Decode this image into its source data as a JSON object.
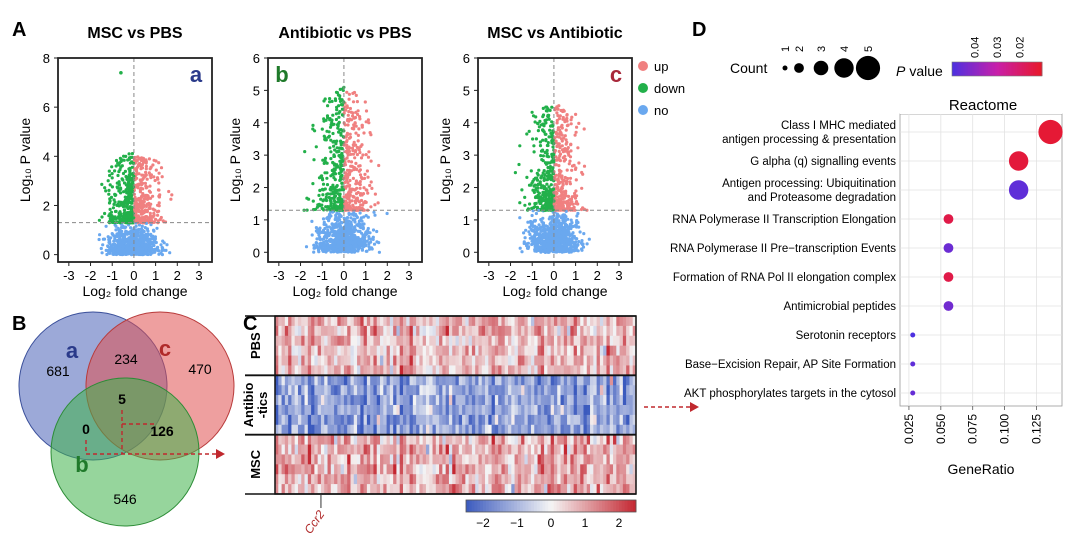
{
  "panel_letters": {
    "A": "A",
    "B": "B",
    "C": "C",
    "D": "D"
  },
  "colors": {
    "up": "#f08080",
    "down": "#22b04a",
    "no": "#6aa8ef",
    "venn_a": "#4a62b8",
    "venn_b": "#3fb24a",
    "venn_c": "#e05050",
    "arrow": "#c0282e"
  },
  "chart_data": [
    {
      "type": "scatter",
      "id": "volcano-a",
      "title": "MSC vs PBS",
      "corner_label": "a",
      "xlabel": "Log₂ fold change",
      "ylabel": "Log₁₀ P value",
      "xlim": [
        -3.5,
        3.6
      ],
      "ylim": [
        -0.3,
        8.0
      ],
      "xticks": [
        "-3",
        "-2",
        "-1",
        "0",
        "1",
        "2",
        "3"
      ],
      "xtick_values": [
        -3,
        -2,
        -1,
        0,
        1,
        2,
        3
      ],
      "yticks": [
        "0",
        "2",
        "4",
        "6",
        "8"
      ],
      "ytick_values": [
        0,
        2,
        4,
        6,
        8
      ],
      "threshold_p": 1.3,
      "threshold_fc": 0,
      "max_abs_fc": 1.9,
      "max_p": 4.2,
      "outlier": [
        -0.6,
        7.4
      ]
    },
    {
      "type": "scatter",
      "id": "volcano-b",
      "title": "Antibiotic vs PBS",
      "corner_label": "b",
      "xlabel": "Log₂ fold change",
      "ylabel": "Log₁₀ P value",
      "xlim": [
        -3.5,
        3.6
      ],
      "ylim": [
        -0.3,
        6.0
      ],
      "xticks": [
        "-3",
        "-2",
        "-1",
        "0",
        "1",
        "2",
        "3"
      ],
      "xtick_values": [
        -3,
        -2,
        -1,
        0,
        1,
        2,
        3
      ],
      "yticks": [
        "0",
        "1",
        "2",
        "3",
        "4",
        "5",
        "6"
      ],
      "ytick_values": [
        0,
        1,
        2,
        3,
        4,
        5,
        6
      ],
      "threshold_p": 1.3,
      "threshold_fc": 0,
      "max_abs_fc": 2.8,
      "max_p": 5.1,
      "outlier": null
    },
    {
      "type": "scatter",
      "id": "volcano-c",
      "title": "MSC vs Antibiotic",
      "corner_label": "c",
      "xlabel": "Log₂ fold change",
      "ylabel": "Log₁₀ P value",
      "xlim": [
        -3.5,
        3.6
      ],
      "ylim": [
        -0.3,
        6.0
      ],
      "xticks": [
        "-3",
        "-2",
        "-1",
        "0",
        "1",
        "2",
        "3"
      ],
      "xtick_values": [
        -3,
        -2,
        -1,
        0,
        1,
        2,
        3
      ],
      "yticks": [
        "0",
        "1",
        "2",
        "3",
        "4",
        "5",
        "6"
      ],
      "ytick_values": [
        0,
        1,
        2,
        3,
        4,
        5,
        6
      ],
      "threshold_p": 1.3,
      "threshold_fc": 0,
      "max_abs_fc": 3.0,
      "max_p": 4.6,
      "outlier": null
    },
    {
      "type": "heatmap",
      "id": "heatmap-c",
      "row_groups": [
        {
          "label": "PBS"
        },
        {
          "label": "Antibio\n-tics"
        },
        {
          "label": "MSC"
        }
      ],
      "gene_label": "Ccr2",
      "colorbar": {
        "min": -2.5,
        "max": 2.5,
        "ticks": [
          "−2",
          "−1",
          "0",
          "1",
          "2"
        ],
        "tick_values": [
          -2,
          -1,
          0,
          1,
          2
        ]
      },
      "group_means": [
        0.7,
        -1.3,
        0.8
      ]
    },
    {
      "type": "scatter",
      "id": "dotplot-d",
      "title": "Reactome",
      "xlabel": "GeneRatio",
      "categories": [
        "Class I MHC mediated\nantigen processing & presentation",
        "G alpha (q) signalling events",
        "Antigen processing: Ubiquitination\nand Proteasome degradation",
        "RNA Polymerase II Transcription Elongation",
        "RNA Polymerase II Pre−transcription Events",
        "Formation of RNA Pol II elongation complex",
        "Antimicrobial peptides",
        "Serotonin receptors",
        "Base−Excision Repair, AP Site Formation",
        "AKT phosphorylates targets in the cytosol"
      ],
      "gene_ratio": [
        0.136,
        0.111,
        0.111,
        0.056,
        0.056,
        0.056,
        0.056,
        0.028,
        0.028,
        0.028
      ],
      "count": [
        5,
        4,
        4,
        2,
        2,
        2,
        2,
        1,
        1,
        1
      ],
      "p_value": [
        0.012,
        0.013,
        0.047,
        0.015,
        0.045,
        0.015,
        0.044,
        0.05,
        0.047,
        0.046
      ],
      "xlim": [
        0.018,
        0.145
      ],
      "xticks": [
        "0.025",
        "0.050",
        "0.075",
        "0.100",
        "0.125"
      ],
      "xtick_values": [
        0.025,
        0.05,
        0.075,
        0.1,
        0.125
      ],
      "size_legend": {
        "title": "Count",
        "values": [
          1,
          2,
          3,
          4,
          5
        ],
        "labels": [
          "1",
          "2",
          "3",
          "4",
          "5"
        ]
      },
      "color_legend": {
        "title_prefix": "P",
        "title_suffix": "value",
        "ticks": [
          "0.04",
          "0.03",
          "0.02"
        ],
        "tick_values": [
          0.04,
          0.03,
          0.02
        ],
        "range": [
          0.05,
          0.01
        ]
      }
    }
  ],
  "legend_volcano": [
    {
      "label": "up",
      "color": "#f08080"
    },
    {
      "label": "down",
      "color": "#22b04a"
    },
    {
      "label": "no",
      "color": "#6aa8ef"
    }
  ],
  "venn": {
    "circle_labels": {
      "a": "a",
      "b": "b",
      "c": "c"
    },
    "regions": {
      "a_only": "681",
      "c_only": "470",
      "b_only": "546",
      "ac": "234",
      "abc": "5",
      "ab": "0",
      "bc": "126"
    }
  }
}
